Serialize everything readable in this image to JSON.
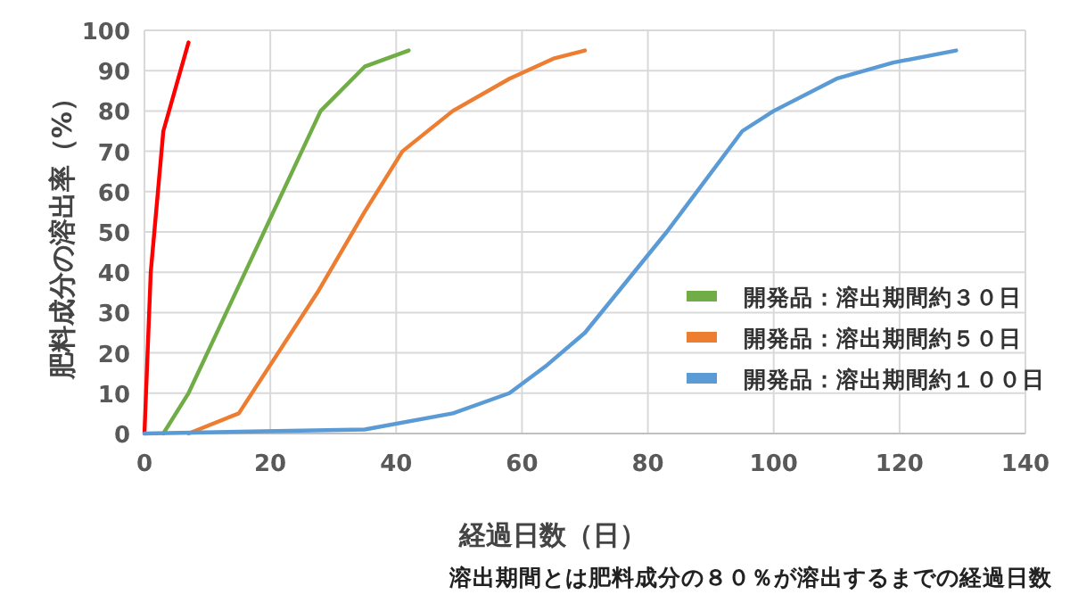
{
  "chart_data": {
    "type": "line",
    "xlabel": "経過日数（日）",
    "ylabel": "肥料成分の溶出率（%）",
    "annotations": [
      "溶出期間とは肥料成分の８０％が溶出するまでの経過日数"
    ],
    "xlim": [
      0,
      140
    ],
    "xticks": [
      0,
      20,
      40,
      60,
      80,
      100,
      120,
      140
    ],
    "ylim": [
      0,
      100
    ],
    "yticks": [
      0,
      10,
      20,
      30,
      40,
      50,
      60,
      70,
      80,
      90,
      100
    ],
    "grid": true,
    "legend": "bottom right",
    "series": [
      {
        "color": "#ff0000",
        "x": [
          0,
          1,
          3,
          7
        ],
        "values": [
          0,
          40,
          75,
          97
        ]
      },
      {
        "name": "開発品：溶出期間約３０日",
        "color": "#70ad47",
        "x": [
          3,
          7,
          28,
          35,
          42
        ],
        "values": [
          0,
          10,
          80,
          91,
          95
        ]
      },
      {
        "name": "開発品：溶出期間約５０日",
        "color": "#ed7d31",
        "x": [
          7,
          15,
          27.5,
          35,
          41,
          49,
          58,
          65,
          70
        ],
        "values": [
          0,
          5,
          35,
          55,
          70,
          80,
          88,
          93,
          95
        ]
      },
      {
        "name": "開発品：溶出期間約１００日",
        "color": "#5b9bd5",
        "x": [
          0,
          35,
          49,
          58,
          64,
          70,
          83,
          95,
          100,
          110,
          119,
          129
        ],
        "values": [
          0,
          1,
          5,
          10,
          17,
          25,
          50,
          75,
          80,
          88,
          92,
          95
        ]
      }
    ]
  }
}
